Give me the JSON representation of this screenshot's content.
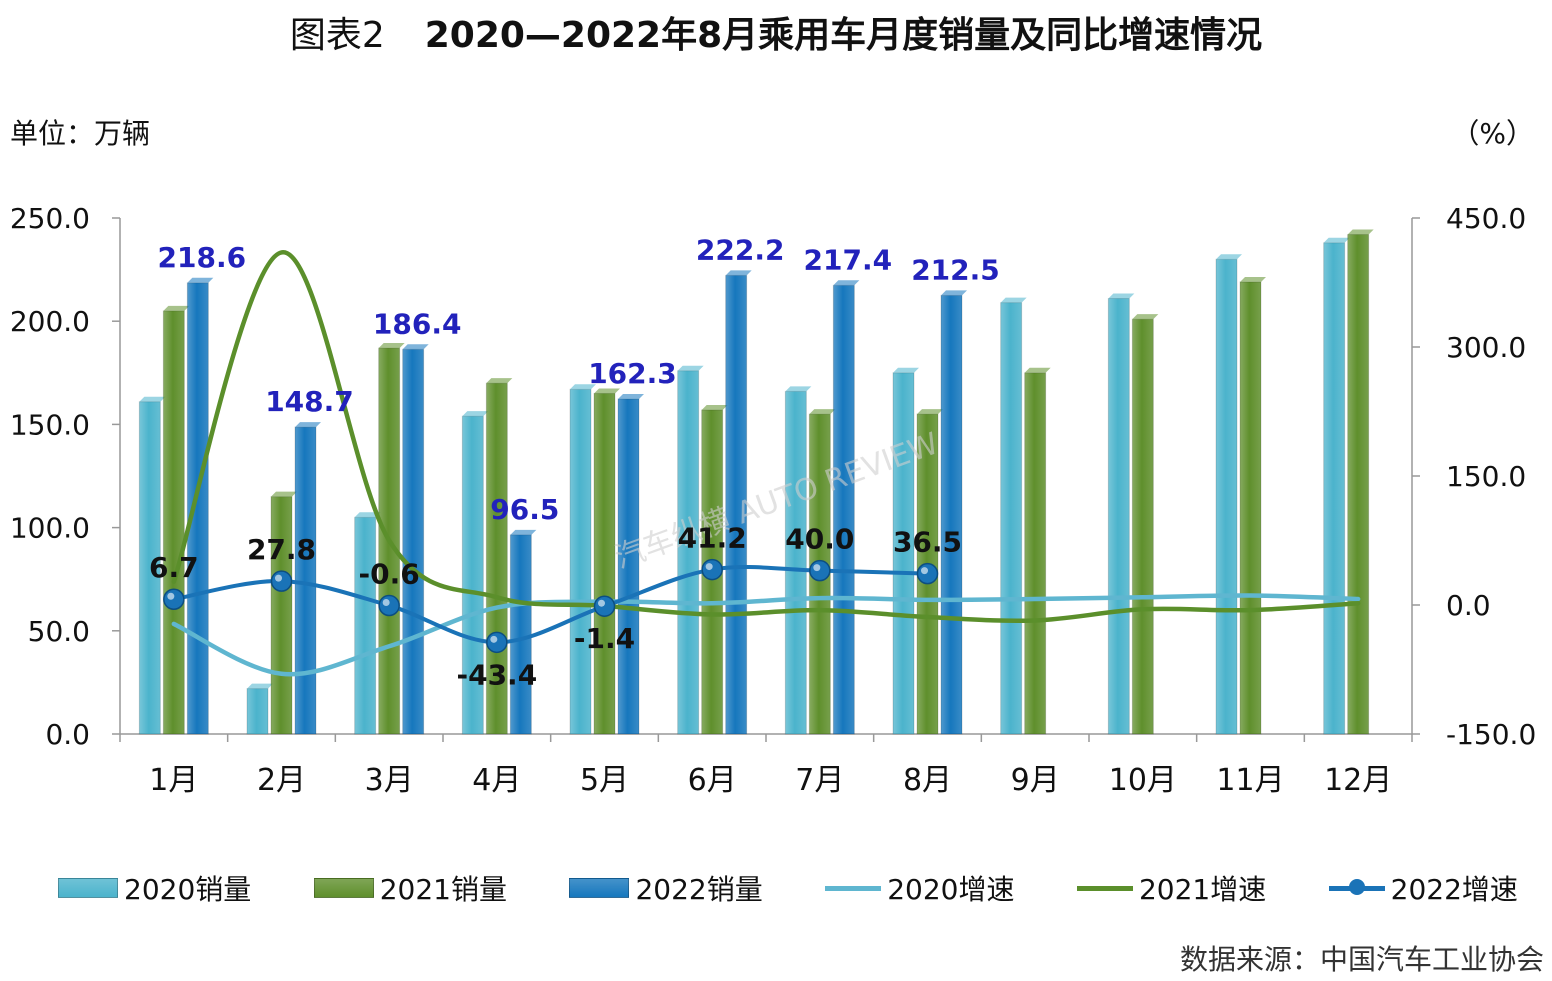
{
  "title": {
    "fig_label": "图表2",
    "main": "2020—2022年8月乘用车月度销量及同比增速情况"
  },
  "unit_left": "单位：万辆",
  "unit_right": "（%）",
  "source": "数据来源：中国汽车工业协会",
  "watermark": "汽车纵横 AUTO REVIEW",
  "colors": {
    "2020_bar": "#4bb3cc",
    "2021_bar": "#5f8f2c",
    "2022_bar": "#1677bd",
    "2020_line": "#5fb6d0",
    "2021_line": "#5b8f2b",
    "2022_line": "#1a73b7",
    "bar_label": "#2222bb"
  },
  "chart_data": {
    "type": "bar",
    "categories": [
      "1月",
      "2月",
      "3月",
      "4月",
      "5月",
      "6月",
      "7月",
      "8月",
      "9月",
      "10月",
      "11月",
      "12月"
    ],
    "y_left": {
      "min": 0,
      "max": 250,
      "ticks": [
        "0.0",
        "50.0",
        "100.0",
        "150.0",
        "200.0",
        "250.0"
      ]
    },
    "y_right": {
      "min": -150,
      "max": 450,
      "ticks": [
        "-150.0",
        "0.0",
        "150.0",
        "300.0",
        "450.0"
      ]
    },
    "bar_series": [
      {
        "name": "2020销量",
        "values": [
          161,
          22,
          105,
          154,
          167,
          176,
          166,
          175,
          209,
          211,
          230,
          238
        ]
      },
      {
        "name": "2021销量",
        "values": [
          205,
          115,
          187,
          170,
          165,
          157,
          155,
          155,
          175,
          201,
          219,
          242
        ]
      },
      {
        "name": "2022销量",
        "values": [
          218.6,
          148.7,
          186.4,
          96.5,
          162.3,
          222.2,
          217.4,
          212.5,
          null,
          null,
          null,
          null
        ]
      }
    ],
    "line_series": [
      {
        "name": "2020增速",
        "values": [
          -22,
          -80,
          -48,
          -3,
          4,
          2,
          8,
          6,
          7,
          9,
          11,
          7
        ]
      },
      {
        "name": "2021增速",
        "values": [
          27,
          410,
          75,
          9,
          -1,
          -11,
          -6,
          -14,
          -18,
          -5,
          -6,
          2
        ]
      },
      {
        "name": "2022增速",
        "values": [
          6.7,
          27.8,
          -0.6,
          -43.4,
          -1.4,
          41.2,
          40.0,
          36.5,
          null,
          null,
          null,
          null
        ]
      }
    ],
    "bar_labels_2022": [
      "218.6",
      "148.7",
      "186.4",
      "96.5",
      "162.3",
      "222.2",
      "217.4",
      "212.5"
    ],
    "line_labels_2022": [
      "6.7",
      "27.8",
      "-0.6",
      "-43.4",
      "-1.4",
      "41.2",
      "40.0",
      "36.5"
    ],
    "legend": [
      {
        "label": "2020销量",
        "kind": "bar",
        "color": "#4bb3cc"
      },
      {
        "label": "2021销量",
        "kind": "bar",
        "color": "#5f8f2c"
      },
      {
        "label": "2022销量",
        "kind": "bar",
        "color": "#1677bd"
      },
      {
        "label": "2020增速",
        "kind": "line",
        "color": "#5fb6d0"
      },
      {
        "label": "2021增速",
        "kind": "line",
        "color": "#5b8f2b"
      },
      {
        "label": "2022增速",
        "kind": "marker-line",
        "color": "#1a73b7"
      }
    ]
  }
}
